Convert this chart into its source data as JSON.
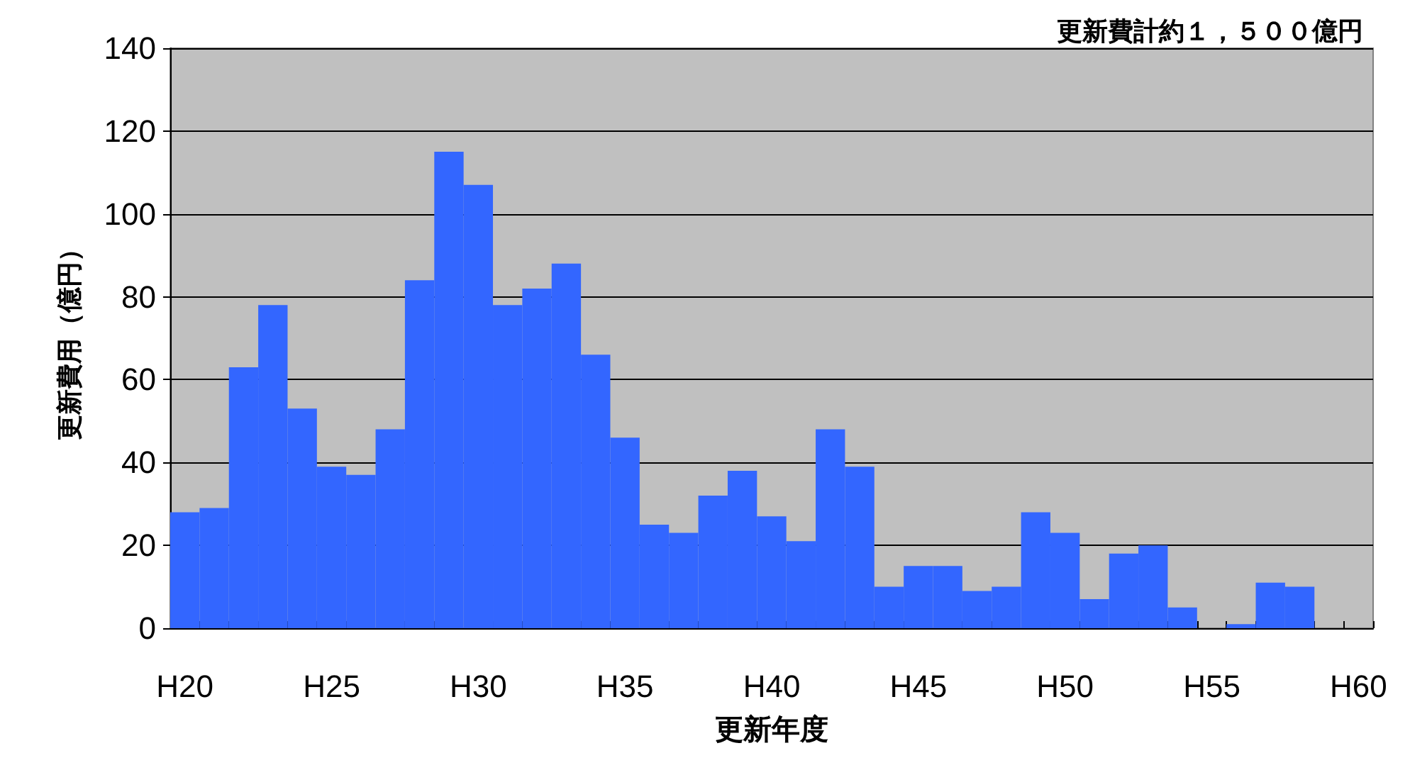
{
  "chart_data": {
    "type": "bar",
    "title": "更新費計約１，５００億円",
    "xlabel": "更新年度",
    "ylabel": "更新費用（億円）",
    "categories": [
      "H20",
      null,
      null,
      null,
      null,
      "H25",
      null,
      null,
      null,
      null,
      "H30",
      null,
      null,
      null,
      null,
      "H35",
      null,
      null,
      null,
      null,
      "H40",
      null,
      null,
      null,
      null,
      "H45",
      null,
      null,
      null,
      null,
      "H50",
      null,
      null,
      null,
      null,
      "H55",
      null,
      null,
      null,
      null,
      "H60"
    ],
    "values": [
      28,
      29,
      63,
      78,
      53,
      39,
      37,
      48,
      84,
      115,
      107,
      78,
      82,
      88,
      66,
      46,
      25,
      23,
      32,
      38,
      27,
      21,
      48,
      39,
      10,
      15,
      15,
      9,
      10,
      28,
      23,
      7,
      18,
      20,
      5,
      0,
      1,
      11,
      10,
      0,
      0
    ],
    "color": "#3366ff",
    "ylim": [
      0,
      140
    ],
    "yticks": [
      0,
      20,
      40,
      60,
      80,
      100,
      120,
      140
    ],
    "grid": "y"
  }
}
